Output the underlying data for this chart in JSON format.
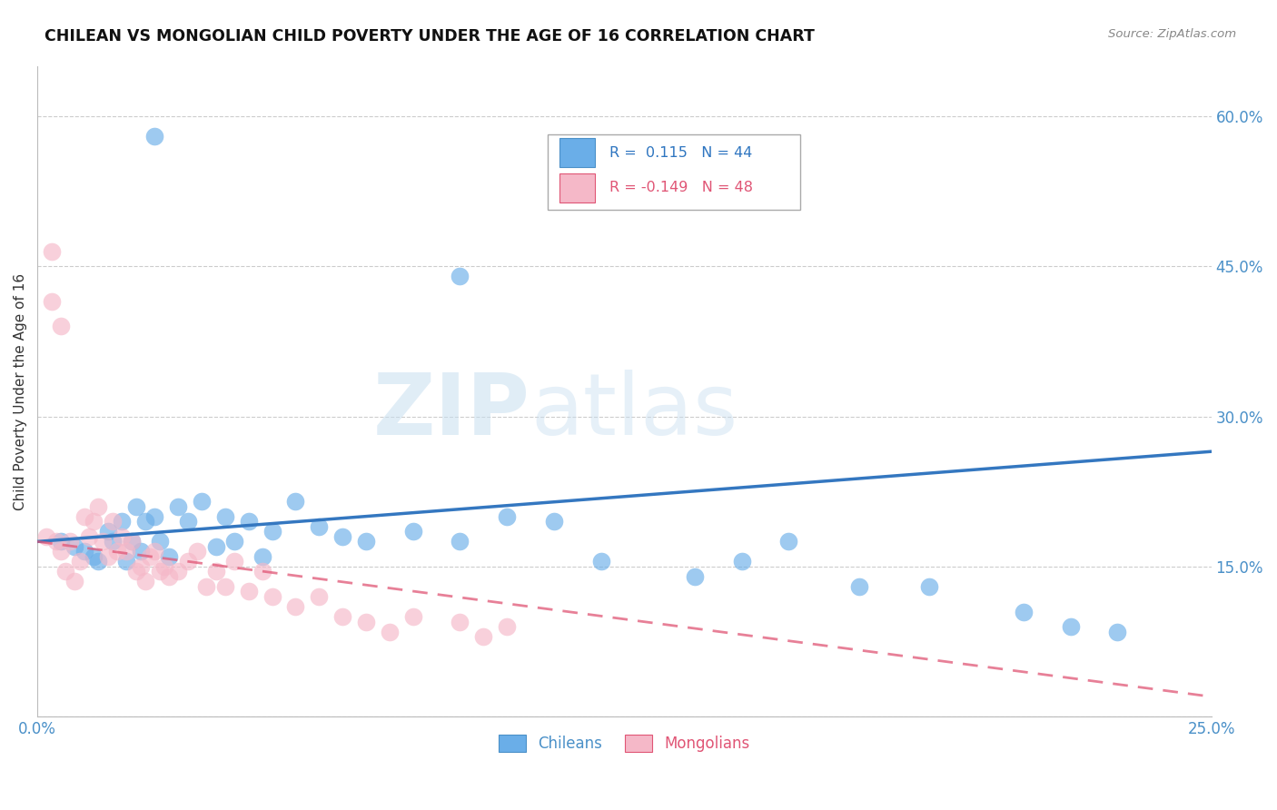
{
  "title": "CHILEAN VS MONGOLIAN CHILD POVERTY UNDER THE AGE OF 16 CORRELATION CHART",
  "source": "Source: ZipAtlas.com",
  "ylabel": "Child Poverty Under the Age of 16",
  "xlim": [
    0.0,
    0.25
  ],
  "ylim": [
    0.0,
    0.65
  ],
  "yticks": [
    0.0,
    0.15,
    0.3,
    0.45,
    0.6
  ],
  "xticks": [
    0.0,
    0.05,
    0.1,
    0.15,
    0.2,
    0.25
  ],
  "xtick_labels": [
    "0.0%",
    "",
    "",
    "",
    "",
    "25.0%"
  ],
  "ytick_labels": [
    "",
    "15.0%",
    "30.0%",
    "45.0%",
    "60.0%"
  ],
  "legend_blue_R": "0.115",
  "legend_blue_N": "44",
  "legend_pink_R": "-0.149",
  "legend_pink_N": "48",
  "blue_color": "#6aaee8",
  "pink_color": "#f5b8c8",
  "line_blue_color": "#3477c0",
  "line_pink_color": "#e05575",
  "blue_line_x": [
    0.0,
    0.25
  ],
  "blue_line_y": [
    0.175,
    0.265
  ],
  "pink_line_x": [
    0.0,
    0.25
  ],
  "pink_line_y": [
    0.175,
    0.02
  ],
  "chileans_x": [
    0.005,
    0.008,
    0.01,
    0.012,
    0.013,
    0.015,
    0.016,
    0.018,
    0.019,
    0.02,
    0.021,
    0.022,
    0.023,
    0.025,
    0.026,
    0.028,
    0.03,
    0.032,
    0.035,
    0.038,
    0.04,
    0.042,
    0.045,
    0.048,
    0.05,
    0.055,
    0.06,
    0.065,
    0.07,
    0.08,
    0.09,
    0.1,
    0.11,
    0.12,
    0.14,
    0.15,
    0.16,
    0.175,
    0.19,
    0.21,
    0.22,
    0.23,
    0.025,
    0.09
  ],
  "chileans_y": [
    0.175,
    0.17,
    0.165,
    0.16,
    0.155,
    0.185,
    0.175,
    0.195,
    0.155,
    0.175,
    0.21,
    0.165,
    0.195,
    0.2,
    0.175,
    0.16,
    0.21,
    0.195,
    0.215,
    0.17,
    0.2,
    0.175,
    0.195,
    0.16,
    0.185,
    0.215,
    0.19,
    0.18,
    0.175,
    0.185,
    0.175,
    0.2,
    0.195,
    0.155,
    0.14,
    0.155,
    0.175,
    0.13,
    0.13,
    0.105,
    0.09,
    0.085,
    0.58,
    0.44
  ],
  "mongolians_x": [
    0.002,
    0.003,
    0.004,
    0.005,
    0.006,
    0.007,
    0.008,
    0.009,
    0.01,
    0.011,
    0.012,
    0.013,
    0.014,
    0.015,
    0.016,
    0.017,
    0.018,
    0.019,
    0.02,
    0.021,
    0.022,
    0.023,
    0.024,
    0.025,
    0.026,
    0.027,
    0.028,
    0.03,
    0.032,
    0.034,
    0.036,
    0.038,
    0.04,
    0.042,
    0.045,
    0.048,
    0.05,
    0.055,
    0.06,
    0.065,
    0.07,
    0.075,
    0.08,
    0.09,
    0.095,
    0.1,
    0.003,
    0.005
  ],
  "mongolians_y": [
    0.18,
    0.465,
    0.175,
    0.165,
    0.145,
    0.175,
    0.135,
    0.155,
    0.2,
    0.18,
    0.195,
    0.21,
    0.175,
    0.16,
    0.195,
    0.165,
    0.18,
    0.165,
    0.175,
    0.145,
    0.15,
    0.135,
    0.16,
    0.165,
    0.145,
    0.15,
    0.14,
    0.145,
    0.155,
    0.165,
    0.13,
    0.145,
    0.13,
    0.155,
    0.125,
    0.145,
    0.12,
    0.11,
    0.12,
    0.1,
    0.095,
    0.085,
    0.1,
    0.095,
    0.08,
    0.09,
    0.415,
    0.39
  ]
}
